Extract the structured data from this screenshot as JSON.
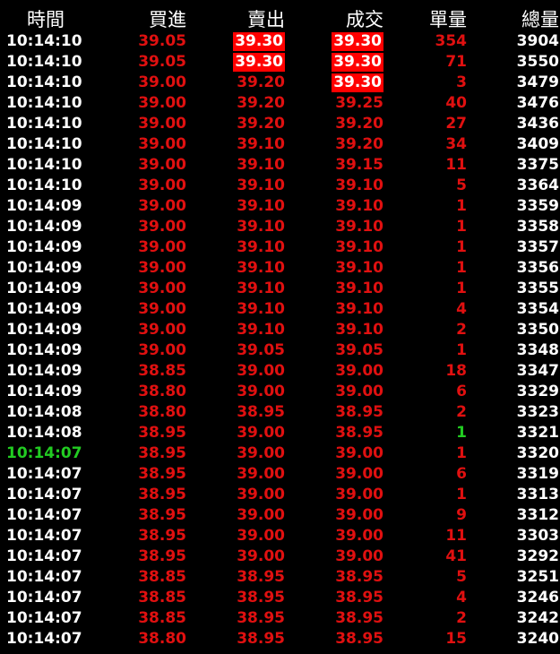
{
  "headers": {
    "time": "時間",
    "bid": "買進",
    "ask": "賣出",
    "deal": "成交",
    "vol": "單量",
    "total": "總量"
  },
  "colors": {
    "background": "#000000",
    "up": "#e01010",
    "down": "#22cc22",
    "highlight": "#ff0000",
    "neutral": "#ffffff"
  },
  "rows": [
    {
      "time": "10:14:10",
      "bid": "39.05",
      "ask": "39.30",
      "deal": "39.30",
      "vol": "354",
      "total": "3904",
      "ask_hl": true,
      "deal_hl": true
    },
    {
      "time": "10:14:10",
      "bid": "39.05",
      "ask": "39.30",
      "deal": "39.30",
      "vol": "71",
      "total": "3550",
      "ask_hl": true,
      "deal_hl": true
    },
    {
      "time": "10:14:10",
      "bid": "39.00",
      "ask": "39.20",
      "deal": "39.30",
      "vol": "3",
      "total": "3479",
      "deal_hl": true
    },
    {
      "time": "10:14:10",
      "bid": "39.00",
      "ask": "39.20",
      "deal": "39.25",
      "vol": "40",
      "total": "3476"
    },
    {
      "time": "10:14:10",
      "bid": "39.00",
      "ask": "39.20",
      "deal": "39.20",
      "vol": "27",
      "total": "3436"
    },
    {
      "time": "10:14:10",
      "bid": "39.00",
      "ask": "39.10",
      "deal": "39.20",
      "vol": "34",
      "total": "3409"
    },
    {
      "time": "10:14:10",
      "bid": "39.00",
      "ask": "39.10",
      "deal": "39.15",
      "vol": "11",
      "total": "3375"
    },
    {
      "time": "10:14:10",
      "bid": "39.00",
      "ask": "39.10",
      "deal": "39.10",
      "vol": "5",
      "total": "3364"
    },
    {
      "time": "10:14:09",
      "bid": "39.00",
      "ask": "39.10",
      "deal": "39.10",
      "vol": "1",
      "total": "3359"
    },
    {
      "time": "10:14:09",
      "bid": "39.00",
      "ask": "39.10",
      "deal": "39.10",
      "vol": "1",
      "total": "3358"
    },
    {
      "time": "10:14:09",
      "bid": "39.00",
      "ask": "39.10",
      "deal": "39.10",
      "vol": "1",
      "total": "3357"
    },
    {
      "time": "10:14:09",
      "bid": "39.00",
      "ask": "39.10",
      "deal": "39.10",
      "vol": "1",
      "total": "3356"
    },
    {
      "time": "10:14:09",
      "bid": "39.00",
      "ask": "39.10",
      "deal": "39.10",
      "vol": "1",
      "total": "3355"
    },
    {
      "time": "10:14:09",
      "bid": "39.00",
      "ask": "39.10",
      "deal": "39.10",
      "vol": "4",
      "total": "3354"
    },
    {
      "time": "10:14:09",
      "bid": "39.00",
      "ask": "39.10",
      "deal": "39.10",
      "vol": "2",
      "total": "3350"
    },
    {
      "time": "10:14:09",
      "bid": "39.00",
      "ask": "39.05",
      "deal": "39.05",
      "vol": "1",
      "total": "3348"
    },
    {
      "time": "10:14:09",
      "bid": "38.85",
      "ask": "39.00",
      "deal": "39.00",
      "vol": "18",
      "total": "3347"
    },
    {
      "time": "10:14:09",
      "bid": "38.80",
      "ask": "39.00",
      "deal": "39.00",
      "vol": "6",
      "total": "3329"
    },
    {
      "time": "10:14:08",
      "bid": "38.80",
      "ask": "38.95",
      "deal": "38.95",
      "vol": "2",
      "total": "3323"
    },
    {
      "time": "10:14:08",
      "bid": "38.95",
      "ask": "39.00",
      "deal": "38.95",
      "vol": "1",
      "total": "3321",
      "vol_green": true
    },
    {
      "time": "10:14:07",
      "bid": "38.95",
      "ask": "39.00",
      "deal": "39.00",
      "vol": "1",
      "total": "3320",
      "time_green": true
    },
    {
      "time": "10:14:07",
      "bid": "38.95",
      "ask": "39.00",
      "deal": "39.00",
      "vol": "6",
      "total": "3319"
    },
    {
      "time": "10:14:07",
      "bid": "38.95",
      "ask": "39.00",
      "deal": "39.00",
      "vol": "1",
      "total": "3313"
    },
    {
      "time": "10:14:07",
      "bid": "38.95",
      "ask": "39.00",
      "deal": "39.00",
      "vol": "9",
      "total": "3312"
    },
    {
      "time": "10:14:07",
      "bid": "38.95",
      "ask": "39.00",
      "deal": "39.00",
      "vol": "11",
      "total": "3303"
    },
    {
      "time": "10:14:07",
      "bid": "38.95",
      "ask": "39.00",
      "deal": "39.00",
      "vol": "41",
      "total": "3292"
    },
    {
      "time": "10:14:07",
      "bid": "38.85",
      "ask": "38.95",
      "deal": "38.95",
      "vol": "5",
      "total": "3251"
    },
    {
      "time": "10:14:07",
      "bid": "38.85",
      "ask": "38.95",
      "deal": "38.95",
      "vol": "4",
      "total": "3246"
    },
    {
      "time": "10:14:07",
      "bid": "38.85",
      "ask": "38.95",
      "deal": "38.95",
      "vol": "2",
      "total": "3242"
    },
    {
      "time": "10:14:07",
      "bid": "38.80",
      "ask": "38.95",
      "deal": "38.95",
      "vol": "15",
      "total": "3240"
    }
  ]
}
